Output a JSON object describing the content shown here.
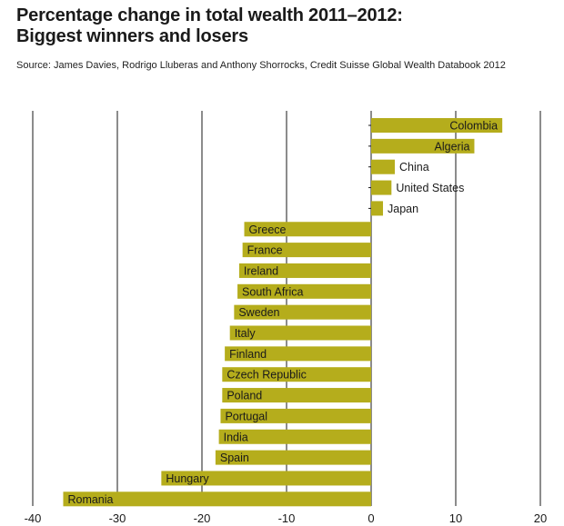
{
  "header": {
    "title_line1": "Percentage change in total wealth 2011–2012:",
    "title_line2": "Biggest winners and losers",
    "source": "Source: James Davies, Rodrigo Lluberas and Anthony Shorrocks, Credit Suisse Global Wealth Databook 2012"
  },
  "chart_data": {
    "type": "bar",
    "orientation": "horizontal",
    "title": "Percentage change in total wealth 2011–2012: Biggest winners and losers",
    "xlim": [
      -40,
      20
    ],
    "xticks": [
      -40,
      -30,
      -20,
      -10,
      0,
      10,
      20
    ],
    "grid": true,
    "bar_color": "#b5ad1c",
    "categories": [
      "Colombia",
      "Algeria",
      "China",
      "United States",
      "Japan",
      "Greece",
      "France",
      "Ireland",
      "South Africa",
      "Sweden",
      "Italy",
      "Finland",
      "Czech Republic",
      "Poland",
      "Portugal",
      "India",
      "Spain",
      "Hungary",
      "Romania"
    ],
    "values": [
      15.5,
      12.2,
      2.8,
      2.4,
      1.4,
      -15.0,
      -15.2,
      -15.6,
      -15.8,
      -16.2,
      -16.7,
      -17.3,
      -17.6,
      -17.6,
      -17.8,
      -18.0,
      -18.4,
      -24.8,
      -36.4
    ]
  }
}
